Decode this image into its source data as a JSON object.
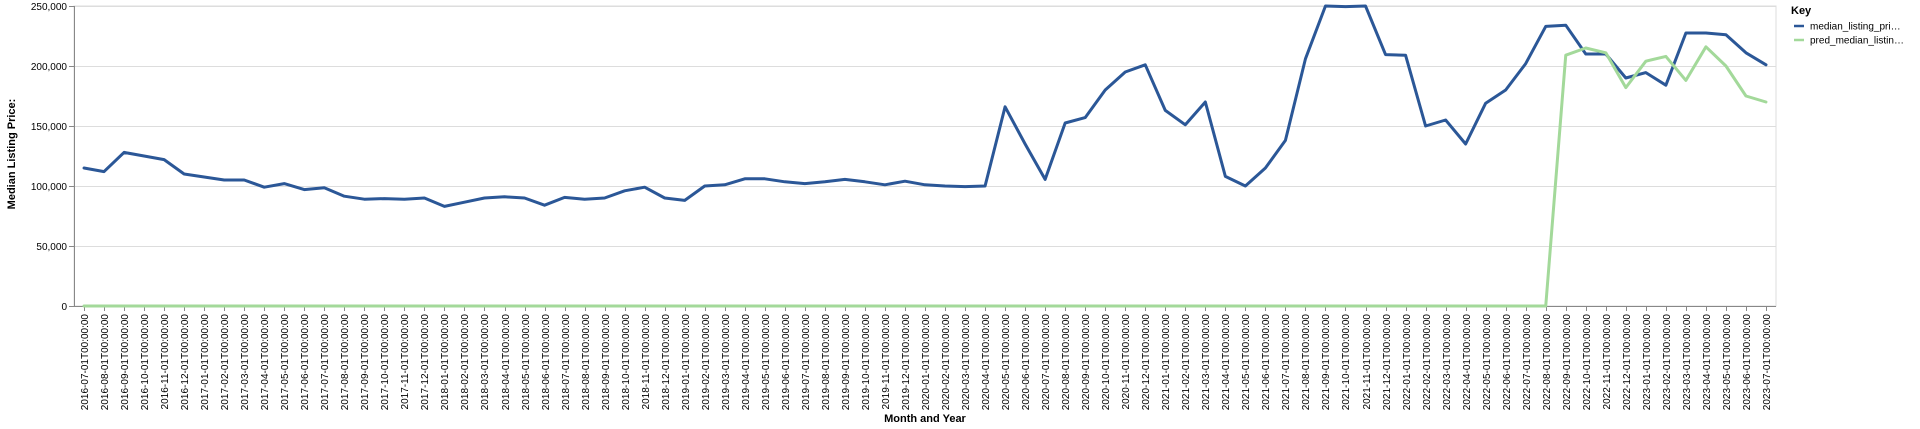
{
  "chart_data": {
    "type": "line",
    "title": "",
    "xlabel": "Month and Year",
    "ylabel": "Median Listing Price:",
    "ylim": [
      0,
      250000
    ],
    "y_ticks": [
      "0",
      "50,000",
      "100,000",
      "150,000",
      "200,000",
      "250,000"
    ],
    "grid": true,
    "legend": {
      "title": "Key",
      "placement": "top-right"
    },
    "categories": [
      "2016-07-01T00:00:00",
      "2016-08-01T00:00:00",
      "2016-09-01T00:00:00",
      "2016-10-01T00:00:00",
      "2016-11-01T00:00:00",
      "2016-12-01T00:00:00",
      "2017-01-01T00:00:00",
      "2017-02-01T00:00:00",
      "2017-03-01T00:00:00",
      "2017-04-01T00:00:00",
      "2017-05-01T00:00:00",
      "2017-06-01T00:00:00",
      "2017-07-01T00:00:00",
      "2017-08-01T00:00:00",
      "2017-09-01T00:00:00",
      "2017-10-01T00:00:00",
      "2017-11-01T00:00:00",
      "2017-12-01T00:00:00",
      "2018-01-01T00:00:00",
      "2018-02-01T00:00:00",
      "2018-03-01T00:00:00",
      "2018-04-01T00:00:00",
      "2018-05-01T00:00:00",
      "2018-06-01T00:00:00",
      "2018-07-01T00:00:00",
      "2018-08-01T00:00:00",
      "2018-09-01T00:00:00",
      "2018-10-01T00:00:00",
      "2018-11-01T00:00:00",
      "2018-12-01T00:00:00",
      "2019-01-01T00:00:00",
      "2019-02-01T00:00:00",
      "2019-03-01T00:00:00",
      "2019-04-01T00:00:00",
      "2019-05-01T00:00:00",
      "2019-06-01T00:00:00",
      "2019-07-01T00:00:00",
      "2019-08-01T00:00:00",
      "2019-09-01T00:00:00",
      "2019-10-01T00:00:00",
      "2019-11-01T00:00:00",
      "2019-12-01T00:00:00",
      "2020-01-01T00:00:00",
      "2020-02-01T00:00:00",
      "2020-03-01T00:00:00",
      "2020-04-01T00:00:00",
      "2020-05-01T00:00:00",
      "2020-06-01T00:00:00",
      "2020-07-01T00:00:00",
      "2020-08-01T00:00:00",
      "2020-09-01T00:00:00",
      "2020-10-01T00:00:00",
      "2020-11-01T00:00:00",
      "2020-12-01T00:00:00",
      "2021-01-01T00:00:00",
      "2021-02-01T00:00:00",
      "2021-03-01T00:00:00",
      "2021-04-01T00:00:00",
      "2021-05-01T00:00:00",
      "2021-06-01T00:00:00",
      "2021-07-01T00:00:00",
      "2021-08-01T00:00:00",
      "2021-09-01T00:00:00",
      "2021-10-01T00:00:00",
      "2021-11-01T00:00:00",
      "2021-12-01T00:00:00",
      "2022-01-01T00:00:00",
      "2022-02-01T00:00:00",
      "2022-03-01T00:00:00",
      "2022-04-01T00:00:00",
      "2022-05-01T00:00:00",
      "2022-06-01T00:00:00",
      "2022-07-01T00:00:00",
      "2022-08-01T00:00:00",
      "2022-09-01T00:00:00",
      "2022-10-01T00:00:00",
      "2022-11-01T00:00:00",
      "2022-12-01T00:00:00",
      "2023-01-01T00:00:00",
      "2023-02-01T00:00:00",
      "2023-03-01T00:00:00",
      "2023-04-01T00:00:00",
      "2023-05-01T00:00:00",
      "2023-06-01T00:00:00",
      "2023-07-01T00:00:00"
    ],
    "series": [
      {
        "name": "median_listing_pri…",
        "color": "#2b5797",
        "values": [
          115000,
          112000,
          128000,
          125000,
          122000,
          110000,
          107500,
          105000,
          105000,
          99000,
          102000,
          97000,
          98500,
          91500,
          89000,
          89500,
          89000,
          90000,
          83000,
          86500,
          90000,
          91000,
          90000,
          84000,
          90500,
          89000,
          90000,
          96000,
          99000,
          90000,
          88000,
          100000,
          101000,
          106000,
          106000,
          103500,
          102000,
          103500,
          105500,
          103500,
          101000,
          104000,
          101000,
          100000,
          99500,
          100000,
          166000,
          135000,
          105500,
          152500,
          157000,
          180000,
          195000,
          201000,
          163000,
          151000,
          170000,
          108000,
          100000,
          115000,
          138000,
          206000,
          250000,
          249500,
          250000,
          209500,
          209000,
          150000,
          155000,
          135000,
          169000,
          180000,
          202000,
          233000,
          234000,
          210000,
          210000,
          190000,
          194500,
          184000,
          227500,
          227500,
          226000,
          211000,
          201000
        ]
      },
      {
        "name": "pred_median_listin…",
        "color": "#a3d99a",
        "values": [
          0,
          0,
          0,
          0,
          0,
          0,
          0,
          0,
          0,
          0,
          0,
          0,
          0,
          0,
          0,
          0,
          0,
          0,
          0,
          0,
          0,
          0,
          0,
          0,
          0,
          0,
          0,
          0,
          0,
          0,
          0,
          0,
          0,
          0,
          0,
          0,
          0,
          0,
          0,
          0,
          0,
          0,
          0,
          0,
          0,
          0,
          0,
          0,
          0,
          0,
          0,
          0,
          0,
          0,
          0,
          0,
          0,
          0,
          0,
          0,
          0,
          0,
          0,
          0,
          0,
          0,
          0,
          0,
          0,
          0,
          0,
          0,
          0,
          0,
          209000,
          215000,
          211000,
          182000,
          204000,
          208000,
          188000,
          216000,
          200000,
          175000,
          170000
        ]
      }
    ]
  }
}
